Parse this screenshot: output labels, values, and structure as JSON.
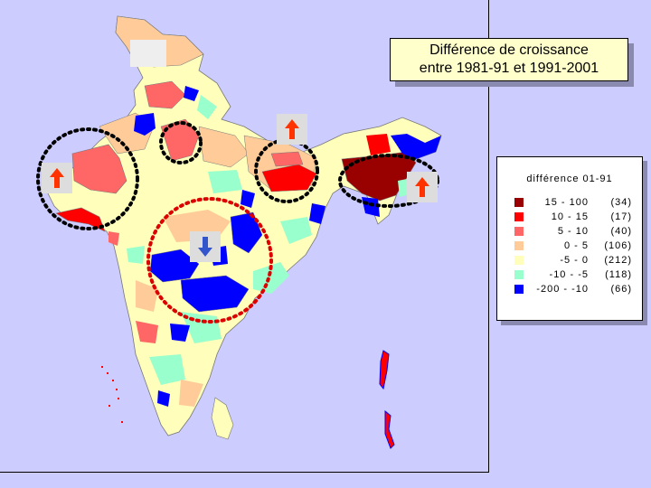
{
  "title": {
    "line1": "Différence de croissance",
    "line2": "entre 1981-91 et 1991-2001"
  },
  "legend": {
    "title": "différence 01-91",
    "classes": [
      {
        "range": "15 - 100",
        "count": "(34)",
        "color": "#990000"
      },
      {
        "range": "10 - 15",
        "count": "(17)",
        "color": "#ff0000"
      },
      {
        "range": "5 - 10",
        "count": "(40)",
        "color": "#ff6666"
      },
      {
        "range": "0 - 5",
        "count": "(106)",
        "color": "#ffcc99"
      },
      {
        "range": "-5 - 0",
        "count": "(212)",
        "color": "#ffffbb"
      },
      {
        "range": "-10 - -5",
        "count": "(118)",
        "color": "#99ffcc"
      },
      {
        "range": "-200 - -10",
        "count": "(66)",
        "color": "#0000ff"
      }
    ]
  },
  "map_colors": {
    "background": "#ccccff",
    "up_arrow": "#ff3300",
    "down_arrow": "#3355cc",
    "highlight_circle_black": "#000000",
    "highlight_circle_red": "#dd0000"
  },
  "annotations": [
    {
      "type": "up-arrow",
      "region": "west"
    },
    {
      "type": "up-arrow",
      "region": "north-east plains"
    },
    {
      "type": "up-arrow",
      "region": "north-east"
    },
    {
      "type": "down-arrow",
      "region": "centre"
    }
  ]
}
